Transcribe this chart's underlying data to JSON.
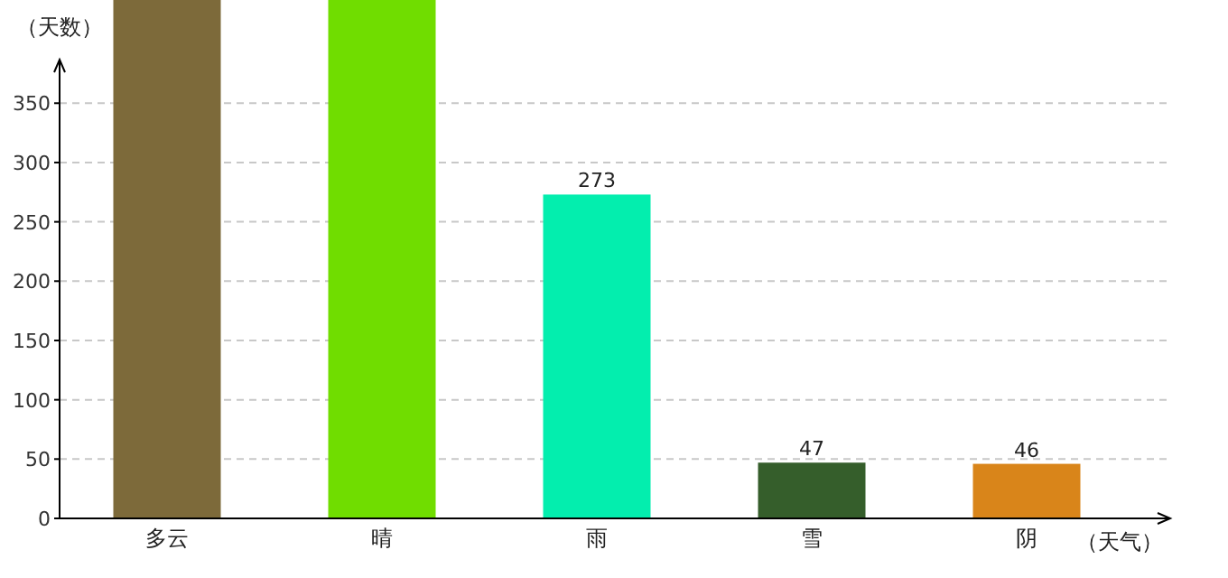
{
  "chart_data": {
    "type": "bar",
    "categories": [
      "多云",
      "晴",
      "雨",
      "雪",
      "阴"
    ],
    "values": [
      437,
      437,
      273,
      47,
      46
    ],
    "value_labels": [
      null,
      null,
      "273",
      "47",
      "46"
    ],
    "colors": [
      "#7d6a3a",
      "#70dd00",
      "#03eeae",
      "#355e2b",
      "#d9851a"
    ],
    "xlabel": "（天气）",
    "ylabel": "（天数）",
    "ylim": [
      0,
      437
    ],
    "yticks": [
      0,
      50,
      100,
      150,
      200,
      250,
      300,
      350
    ],
    "grid": "y"
  }
}
